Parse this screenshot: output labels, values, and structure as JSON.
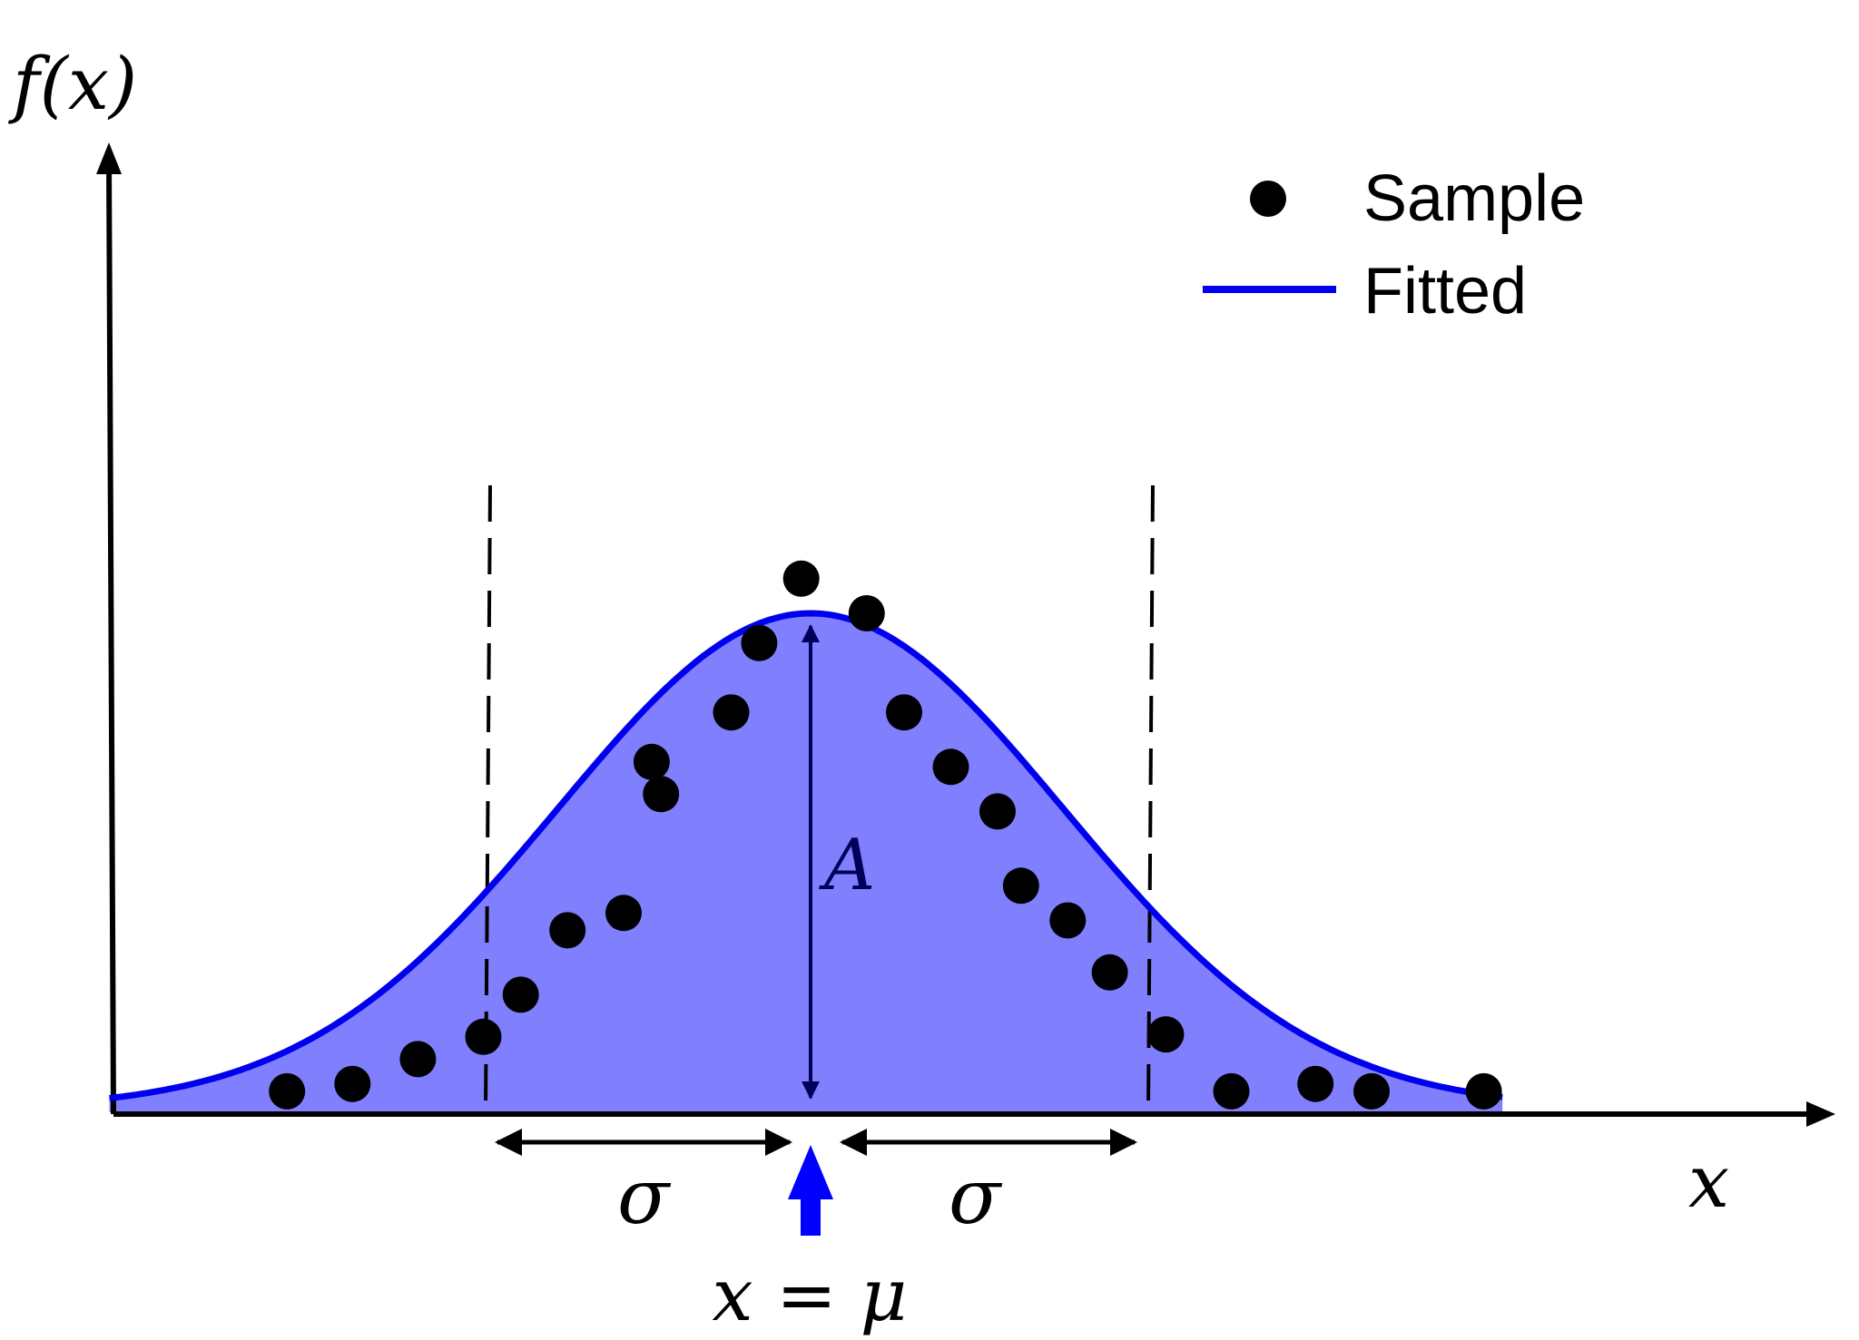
{
  "labels": {
    "y_axis": "f(x)",
    "x_axis": "x",
    "amplitude": "A",
    "sigma_left": "σ",
    "sigma_right": "σ",
    "mean": "x = μ"
  },
  "legend": {
    "sample": "Sample",
    "fitted": "Fitted"
  },
  "colors": {
    "fill": "#8080ff",
    "fitted_line": "#0000ee",
    "amplitude_arrow": "#00005a",
    "mean_arrow": "#0000ff",
    "points": "#000000"
  },
  "chart_data": {
    "type": "scatter",
    "curve": "gaussian",
    "series": [
      {
        "name": "Sample",
        "x": [
          -5.6,
          -4.9,
          -4.2,
          -3.5,
          -3.1,
          -2.6,
          -2.0,
          -1.6,
          -1.7,
          -0.85,
          -0.55,
          -0.1,
          0.6,
          1.0,
          1.5,
          2.0,
          2.25,
          2.75,
          3.2,
          3.8,
          4.5,
          5.4,
          6.0,
          7.2
        ],
        "y": [
          0.035,
          0.05,
          0.1,
          0.145,
          0.23,
          0.36,
          0.395,
          0.635,
          0.7,
          0.8,
          0.94,
          1.07,
          1.0,
          0.8,
          0.69,
          0.6,
          0.45,
          0.38,
          0.275,
          0.15,
          0.035,
          0.05,
          0.035,
          0.035
        ]
      },
      {
        "name": "Fitted",
        "mu": 0.0,
        "sigma": 2.7,
        "A": 1.0
      }
    ]
  }
}
